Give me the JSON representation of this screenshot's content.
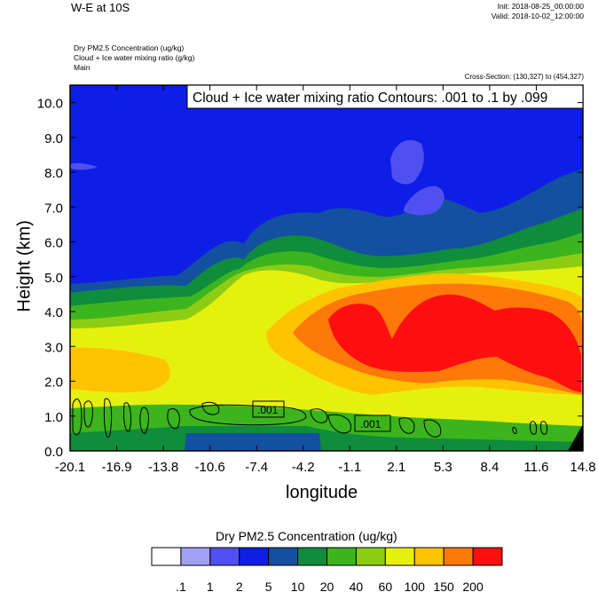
{
  "header": {
    "title": "W-E at 10S",
    "init": "Init: 2018-08-25_00:00:00",
    "valid": "Valid: 2018-10-02_12:00:00",
    "field1": "Dry PM2.5 Concentration   (ug/kg)",
    "field2": "Cloud + Ice water mixing ratio   (g/kg)",
    "field3": "Main",
    "cross_section": "Cross-Section: (130,327) to (454,327)"
  },
  "chart_data": {
    "type": "heatmap",
    "title": "",
    "contour_label": "Cloud + Ice water mixing ratio Contours: .001 to .1 by .099",
    "xlabel": "longitude",
    "ylabel": "Height (km)",
    "x_ticks": [
      "-20.1",
      "-16.9",
      "-13.8",
      "-10.6",
      "-7.4",
      "-4.2",
      "-1.1",
      "2.1",
      "5.3",
      "8.4",
      "11.6",
      "14.8"
    ],
    "y_ticks": [
      "0.0",
      "1.0",
      "2.0",
      "3.0",
      "4.0",
      "5.0",
      "6.0",
      "7.0",
      "8.0",
      "9.0",
      "10.0"
    ],
    "xlim": [
      -20.1,
      14.8
    ],
    "ylim": [
      0,
      10.5
    ],
    "contour_inline_labels": [
      ".001",
      ".001"
    ],
    "colorbar": {
      "title": "Dry PM2.5 Concentration  (ug/kg)",
      "labels": [
        ".1",
        "1",
        "2",
        "5",
        "10",
        "20",
        "40",
        "60",
        "100",
        "150",
        "200"
      ],
      "colors": [
        "#ffffff",
        "#a0a0f5",
        "#5050f0",
        "#0f1ee6",
        "#1450a0",
        "#0f8c3c",
        "#3cb41e",
        "#8ccd14",
        "#e6f00f",
        "#ffc300",
        "#ff780a",
        "#ff0f0f"
      ]
    }
  }
}
